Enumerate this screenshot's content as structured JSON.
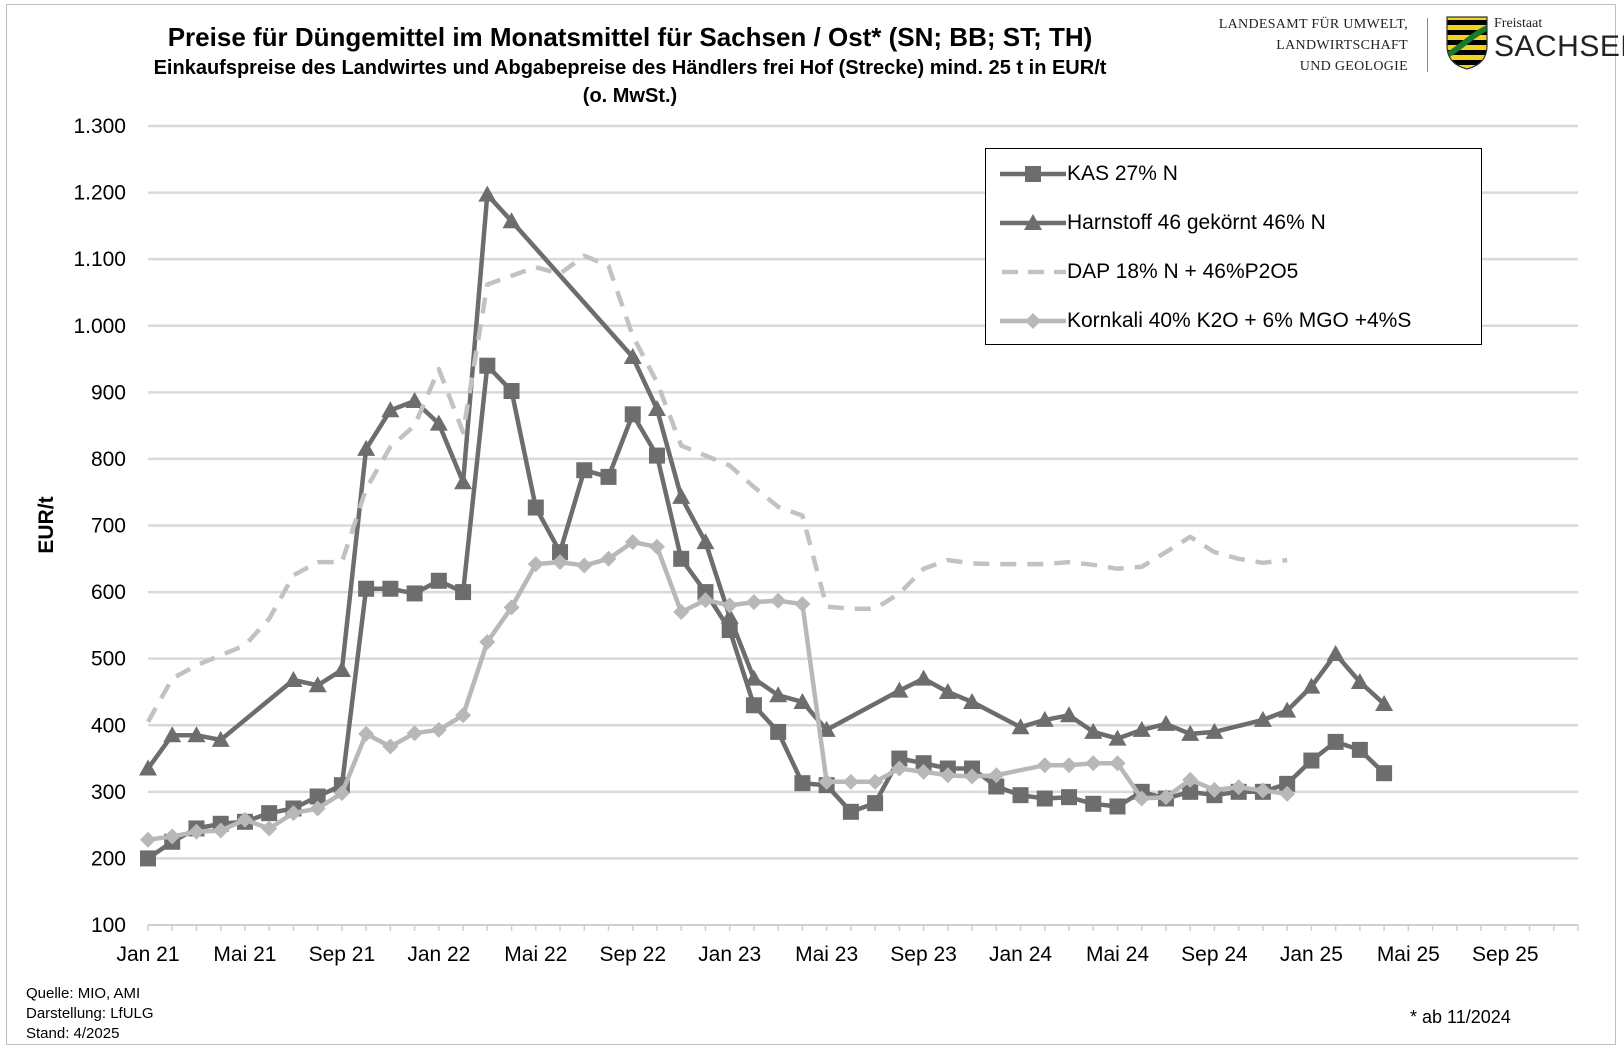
{
  "header": {
    "title": "Preise für Düngemittel im Monatsmittel für Sachsen / Ost* (SN; BB; ST; TH)",
    "subtitle_line1": "Einkaufspreise des Landwirtes und Abgabepreise des Händlers frei Hof (Strecke) mind. 25 t in EUR/t",
    "subtitle_line2": "(o. MwSt.)"
  },
  "logo": {
    "org_line1": "LANDESAMT FÜR UMWELT,",
    "org_line2": "LANDWIRTSCHAFT",
    "org_line3": "UND GEOLOGIE",
    "state_small": "Freistaat",
    "state_big": "SACHSEN",
    "crest_icon": "saxony-crest-icon"
  },
  "footer": {
    "source": "Quelle: MIO, AMI",
    "presentation": "Darstellung: LfULG",
    "status": "Stand: 4/2025",
    "note": "* ab 11/2024"
  },
  "colors": {
    "kas": "#6d6d6d",
    "harnstoff": "#6d6d6d",
    "dap": "#c2c2c2",
    "kornkali": "#b8b8b8",
    "grid": "#d9d9d9"
  },
  "chart_data": {
    "type": "line",
    "title": "Preise für Düngemittel im Monatsmittel für Sachsen / Ost* (SN; BB; ST; TH)",
    "ylabel": "EUR/t",
    "xlabel": "",
    "ylim": [
      100,
      1300
    ],
    "yticks": [
      "100",
      "200",
      "300",
      "400",
      "500",
      "600",
      "700",
      "800",
      "900",
      "1.000",
      "1.100",
      "1.200",
      "1.300"
    ],
    "ytick_values": [
      100,
      200,
      300,
      400,
      500,
      600,
      700,
      800,
      900,
      1000,
      1100,
      1200,
      1300
    ],
    "xlim": [
      "2021-01",
      "2025-12"
    ],
    "xticks": [
      "Jan 21",
      "Mai 21",
      "Sep 21",
      "Jan 22",
      "Mai 22",
      "Sep 22",
      "Jan 23",
      "Mai 23",
      "Sep 23",
      "Jan 24",
      "Mai 24",
      "Sep 24",
      "Jan 25",
      "Mai 25",
      "Sep 25"
    ],
    "xtick_dates": [
      "2021-01",
      "2021-05",
      "2021-09",
      "2022-01",
      "2022-05",
      "2022-09",
      "2023-01",
      "2023-05",
      "2023-09",
      "2024-01",
      "2024-05",
      "2024-09",
      "2025-01",
      "2025-05",
      "2025-09"
    ],
    "grid": true,
    "legend_position": "top-right",
    "series": [
      {
        "name": "KAS 27% N",
        "style": "solid",
        "marker": "square",
        "points": [
          [
            "2021-01",
            200
          ],
          [
            "2021-02",
            225
          ],
          [
            "2021-03",
            245
          ],
          [
            "2021-04",
            252
          ],
          [
            "2021-05",
            255
          ],
          [
            "2021-06",
            268
          ],
          [
            "2021-07",
            275
          ],
          [
            "2021-08",
            293
          ],
          [
            "2021-09",
            310
          ],
          [
            "2021-10",
            605
          ],
          [
            "2021-11",
            605
          ],
          [
            "2021-12",
            598
          ],
          [
            "2022-01",
            617
          ],
          [
            "2022-02",
            600
          ],
          [
            "2022-03",
            940
          ],
          [
            "2022-04",
            902
          ],
          [
            "2022-05",
            727
          ],
          [
            "2022-06",
            660
          ],
          [
            "2022-07",
            783
          ],
          [
            "2022-08",
            773
          ],
          [
            "2022-09",
            867
          ],
          [
            "2022-10",
            805
          ],
          [
            "2022-11",
            650
          ],
          [
            "2022-12",
            600
          ],
          [
            "2023-01",
            543
          ],
          [
            "2023-02",
            430
          ],
          [
            "2023-03",
            390
          ],
          [
            "2023-04",
            313
          ],
          [
            "2023-05",
            310
          ],
          [
            "2023-06",
            270
          ],
          [
            "2023-07",
            283
          ],
          [
            "2023-08",
            350
          ],
          [
            "2023-09",
            343
          ],
          [
            "2023-10",
            335
          ],
          [
            "2023-11",
            335
          ],
          [
            "2023-12",
            308
          ],
          [
            "2024-01",
            295
          ],
          [
            "2024-02",
            290
          ],
          [
            "2024-03",
            292
          ],
          [
            "2024-04",
            282
          ],
          [
            "2024-05",
            278
          ],
          [
            "2024-06",
            300
          ],
          [
            "2024-07",
            290
          ],
          [
            "2024-08",
            300
          ],
          [
            "2024-09",
            295
          ],
          [
            "2024-10",
            300
          ],
          [
            "2024-11",
            300
          ],
          [
            "2024-12",
            312
          ],
          [
            "2025-01",
            347
          ],
          [
            "2025-02",
            375
          ],
          [
            "2025-03",
            363
          ],
          [
            "2025-04",
            328
          ]
        ]
      },
      {
        "name": "Harnstoff 46 gekörnt 46% N",
        "style": "solid",
        "marker": "triangle",
        "points": [
          [
            "2021-01",
            335
          ],
          [
            "2021-02",
            385
          ],
          [
            "2021-03",
            385
          ],
          [
            "2021-04",
            378
          ],
          [
            "2021-07",
            468
          ],
          [
            "2021-08",
            460
          ],
          [
            "2021-09",
            483
          ],
          [
            "2021-10",
            815
          ],
          [
            "2021-11",
            873
          ],
          [
            "2021-12",
            887
          ],
          [
            "2022-01",
            853
          ],
          [
            "2022-02",
            765
          ],
          [
            "2022-03",
            1197
          ],
          [
            "2022-04",
            1157
          ],
          [
            "2022-09",
            953
          ],
          [
            "2022-10",
            875
          ],
          [
            "2022-11",
            743
          ],
          [
            "2022-12",
            675
          ],
          [
            "2023-01",
            563
          ],
          [
            "2023-02",
            470
          ],
          [
            "2023-03",
            445
          ],
          [
            "2023-04",
            435
          ],
          [
            "2023-05",
            393
          ],
          [
            "2023-08",
            452
          ],
          [
            "2023-09",
            470
          ],
          [
            "2023-10",
            450
          ],
          [
            "2023-11",
            435
          ],
          [
            "2024-01",
            397
          ],
          [
            "2024-02",
            408
          ],
          [
            "2024-03",
            415
          ],
          [
            "2024-04",
            390
          ],
          [
            "2024-05",
            380
          ],
          [
            "2024-06",
            393
          ],
          [
            "2024-07",
            402
          ],
          [
            "2024-08",
            387
          ],
          [
            "2024-09",
            390
          ],
          [
            "2024-11",
            408
          ],
          [
            "2024-12",
            422
          ],
          [
            "2025-01",
            458
          ],
          [
            "2025-02",
            507
          ],
          [
            "2025-03",
            465
          ],
          [
            "2025-04",
            432
          ]
        ]
      },
      {
        "name": "DAP 18% N + 46%P2O5",
        "style": "dashed",
        "marker": "none",
        "points": [
          [
            "2021-01",
            405
          ],
          [
            "2021-02",
            470
          ],
          [
            "2021-03",
            490
          ],
          [
            "2021-04",
            505
          ],
          [
            "2021-05",
            520
          ],
          [
            "2021-06",
            560
          ],
          [
            "2021-07",
            625
          ],
          [
            "2021-08",
            645
          ],
          [
            "2021-09",
            645
          ],
          [
            "2021-10",
            755
          ],
          [
            "2021-11",
            818
          ],
          [
            "2021-12",
            850
          ],
          [
            "2022-01",
            935
          ],
          [
            "2022-02",
            840
          ],
          [
            "2022-03",
            1062
          ],
          [
            "2022-04",
            1075
          ],
          [
            "2022-05",
            1088
          ],
          [
            "2022-06",
            1078
          ],
          [
            "2022-07",
            1105
          ],
          [
            "2022-08",
            1090
          ],
          [
            "2022-09",
            985
          ],
          [
            "2022-10",
            915
          ],
          [
            "2022-11",
            820
          ],
          [
            "2022-12",
            805
          ],
          [
            "2023-01",
            790
          ],
          [
            "2023-02",
            758
          ],
          [
            "2023-03",
            728
          ],
          [
            "2023-04",
            715
          ],
          [
            "2023-05",
            578
          ],
          [
            "2023-06",
            575
          ],
          [
            "2023-07",
            575
          ],
          [
            "2023-08",
            598
          ],
          [
            "2023-09",
            635
          ],
          [
            "2023-10",
            648
          ],
          [
            "2023-11",
            643
          ],
          [
            "2023-12",
            642
          ],
          [
            "2024-01",
            642
          ],
          [
            "2024-02",
            642
          ],
          [
            "2024-03",
            645
          ],
          [
            "2024-04",
            641
          ],
          [
            "2024-05",
            635
          ],
          [
            "2024-06",
            638
          ],
          [
            "2024-07",
            660
          ],
          [
            "2024-08",
            683
          ],
          [
            "2024-09",
            660
          ],
          [
            "2024-10",
            650
          ],
          [
            "2024-11",
            644
          ],
          [
            "2024-12",
            648
          ]
        ]
      },
      {
        "name": "Kornkali 40% K2O + 6% MGO +4%S",
        "style": "solid",
        "marker": "diamond",
        "points": [
          [
            "2021-01",
            228
          ],
          [
            "2021-02",
            233
          ],
          [
            "2021-03",
            240
          ],
          [
            "2021-04",
            242
          ],
          [
            "2021-05",
            258
          ],
          [
            "2021-06",
            245
          ],
          [
            "2021-07",
            268
          ],
          [
            "2021-08",
            275
          ],
          [
            "2021-09",
            298
          ],
          [
            "2021-10",
            387
          ],
          [
            "2021-11",
            368
          ],
          [
            "2021-12",
            388
          ],
          [
            "2022-01",
            393
          ],
          [
            "2022-02",
            415
          ],
          [
            "2022-03",
            525
          ],
          [
            "2022-04",
            577
          ],
          [
            "2022-05",
            642
          ],
          [
            "2022-06",
            645
          ],
          [
            "2022-07",
            640
          ],
          [
            "2022-08",
            650
          ],
          [
            "2022-09",
            675
          ],
          [
            "2022-10",
            668
          ],
          [
            "2022-11",
            570
          ],
          [
            "2022-12",
            588
          ],
          [
            "2023-01",
            580
          ],
          [
            "2023-02",
            585
          ],
          [
            "2023-03",
            587
          ],
          [
            "2023-04",
            582
          ],
          [
            "2023-05",
            315
          ],
          [
            "2023-06",
            315
          ],
          [
            "2023-07",
            315
          ],
          [
            "2023-08",
            335
          ],
          [
            "2023-09",
            330
          ],
          [
            "2023-10",
            325
          ],
          [
            "2023-11",
            323
          ],
          [
            "2023-12",
            325
          ],
          [
            "2024-02",
            340
          ],
          [
            "2024-03",
            340
          ],
          [
            "2024-04",
            343
          ],
          [
            "2024-05",
            343
          ],
          [
            "2024-06",
            290
          ],
          [
            "2024-07",
            292
          ],
          [
            "2024-08",
            318
          ],
          [
            "2024-09",
            303
          ],
          [
            "2024-10",
            307
          ],
          [
            "2024-11",
            302
          ],
          [
            "2024-12",
            297
          ]
        ]
      }
    ]
  }
}
